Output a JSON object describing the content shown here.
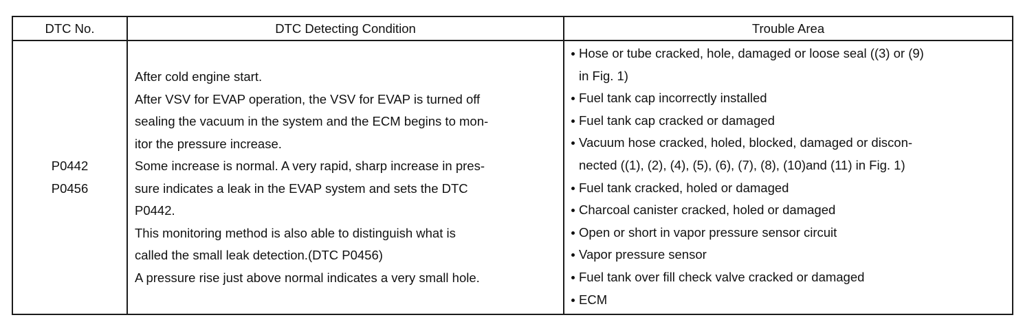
{
  "table": {
    "headers": [
      "DTC No.",
      "DTC Detecting Condition",
      "Trouble Area"
    ],
    "dtc_codes": [
      "P0442",
      "P0456"
    ],
    "condition_lines": [
      "After cold engine start.",
      "After VSV for EVAP operation, the VSV for EVAP is turned off",
      "sealing the vacuum in the system and the ECM begins to mon-",
      "itor the pressure increase.",
      "Some increase is normal. A very rapid, sharp increase in pres-",
      "sure indicates a leak in the EVAP system and sets the DTC",
      "P0442.",
      "This monitoring method is also able to distinguish what is",
      "called the small leak detection.(DTC P0456)",
      "A pressure rise just above normal indicates a very small hole."
    ],
    "trouble_areas": [
      {
        "lines": [
          "Hose or tube cracked, hole, damaged or loose seal ((3) or (9)",
          "in Fig. 1)"
        ]
      },
      {
        "lines": [
          "Fuel tank cap incorrectly installed"
        ]
      },
      {
        "lines": [
          "Fuel tank cap cracked or damaged"
        ]
      },
      {
        "lines": [
          "Vacuum hose cracked, holed, blocked, damaged or discon-",
          "nected ((1), (2), (4), (5), (6), (7), (8), (10)and (11) in Fig. 1)"
        ]
      },
      {
        "lines": [
          "Fuel tank cracked, holed or damaged"
        ]
      },
      {
        "lines": [
          "Charcoal canister cracked, holed or damaged"
        ]
      },
      {
        "lines": [
          "Open or short in vapor pressure sensor circuit"
        ]
      },
      {
        "lines": [
          "Vapor pressure sensor"
        ]
      },
      {
        "lines": [
          "Fuel tank over fill check valve cracked or damaged"
        ]
      },
      {
        "lines": [
          "ECM"
        ]
      }
    ]
  }
}
